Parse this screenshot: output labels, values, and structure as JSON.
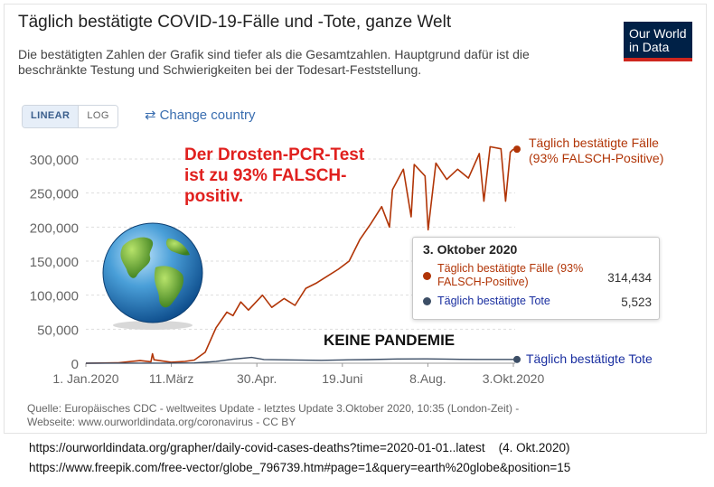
{
  "header": {
    "title": "Täglich bestätigte COVID-19-Fälle und -Tote, ganze Welt",
    "subtitle": "Die bestätigten Zahlen der Grafik sind tiefer als die Gesamtzahlen. Hauptgrund dafür ist die beschränkte Testung und Schwierigkeiten bei der Todesart-Feststellung.",
    "logo_line1": "Our World",
    "logo_line2": "in Data"
  },
  "controls": {
    "linear_label": "LINEAR",
    "log_label": "LOG",
    "scale_selected": "linear",
    "change_country_label": "Change country",
    "change_country_icon": "swap-arrows-icon"
  },
  "annotation": {
    "text": "Der Drosten-PCR-Test ist zu 93% FALSCH-positiv.",
    "color": "#e0201e",
    "banner": "KEINE PANDEMIE",
    "image": "globe-icon"
  },
  "tooltip": {
    "date": "3. Oktober 2020",
    "rows": [
      {
        "label": "Täglich bestätigte Fälle (93% FALSCH-Positive)",
        "value": "314,434",
        "color": "#b13507"
      },
      {
        "label": "Täglich bestätigte Tote",
        "value": "5,523",
        "color": "#3c4e66"
      }
    ]
  },
  "chart_data": {
    "type": "line",
    "title": "Täglich bestätigte COVID-19-Fälle und -Tote, ganze Welt",
    "x_start": "2020-01-01",
    "x_end": "2020-10-03",
    "x_tick_labels": [
      "1. Jan.2020",
      "11.März",
      "30.Apr.",
      "19.Juni",
      "8.Aug.",
      "3.Okt.2020"
    ],
    "y_tick_labels": [
      "0",
      "50,000",
      "100,000",
      "150,000",
      "200,000",
      "250,000",
      "300,000"
    ],
    "ylim": [
      0,
      320000
    ],
    "grid": "horizontal dashed",
    "series": [
      {
        "name": "Täglich bestätigte Fälle (93% FALSCH-Positive)",
        "color": "#b13507",
        "end_value": 314434,
        "points": [
          [
            "2020-01-01",
            0
          ],
          [
            "2020-01-22",
            600
          ],
          [
            "2020-02-05",
            3800
          ],
          [
            "2020-02-12",
            2100
          ],
          [
            "2020-02-13",
            14000
          ],
          [
            "2020-02-14",
            5000
          ],
          [
            "2020-02-25",
            1500
          ],
          [
            "2020-03-05",
            2600
          ],
          [
            "2020-03-11",
            4600
          ],
          [
            "2020-03-18",
            16000
          ],
          [
            "2020-03-25",
            52000
          ],
          [
            "2020-04-01",
            75000
          ],
          [
            "2020-04-05",
            70000
          ],
          [
            "2020-04-10",
            90000
          ],
          [
            "2020-04-15",
            78000
          ],
          [
            "2020-04-24",
            100000
          ],
          [
            "2020-04-30",
            82000
          ],
          [
            "2020-05-08",
            95000
          ],
          [
            "2020-05-15",
            85000
          ],
          [
            "2020-05-22",
            110000
          ],
          [
            "2020-05-29",
            118000
          ],
          [
            "2020-06-05",
            128000
          ],
          [
            "2020-06-12",
            138000
          ],
          [
            "2020-06-19",
            150000
          ],
          [
            "2020-06-26",
            182000
          ],
          [
            "2020-07-03",
            205000
          ],
          [
            "2020-07-10",
            230000
          ],
          [
            "2020-07-15",
            200000
          ],
          [
            "2020-07-17",
            255000
          ],
          [
            "2020-07-24",
            285000
          ],
          [
            "2020-07-29",
            215000
          ],
          [
            "2020-07-31",
            292000
          ],
          [
            "2020-08-07",
            275000
          ],
          [
            "2020-08-09",
            196000
          ],
          [
            "2020-08-14",
            294000
          ],
          [
            "2020-08-21",
            270000
          ],
          [
            "2020-08-28",
            285000
          ],
          [
            "2020-09-04",
            272000
          ],
          [
            "2020-09-11",
            308000
          ],
          [
            "2020-09-14",
            238000
          ],
          [
            "2020-09-18",
            318000
          ],
          [
            "2020-09-25",
            315000
          ],
          [
            "2020-09-28",
            238000
          ],
          [
            "2020-10-01",
            310000
          ],
          [
            "2020-10-03",
            314434
          ]
        ]
      },
      {
        "name": "Täglich bestätigte Tote",
        "color": "#3c4e66",
        "end_value": 5523,
        "points": [
          [
            "2020-01-01",
            0
          ],
          [
            "2020-02-20",
            100
          ],
          [
            "2020-03-11",
            400
          ],
          [
            "2020-03-25",
            2500
          ],
          [
            "2020-04-05",
            6000
          ],
          [
            "2020-04-17",
            8500
          ],
          [
            "2020-04-25",
            5500
          ],
          [
            "2020-05-15",
            4800
          ],
          [
            "2020-06-01",
            4200
          ],
          [
            "2020-06-19",
            5000
          ],
          [
            "2020-07-01",
            5300
          ],
          [
            "2020-07-20",
            6200
          ],
          [
            "2020-08-08",
            6400
          ],
          [
            "2020-08-25",
            5800
          ],
          [
            "2020-09-10",
            5600
          ],
          [
            "2020-10-03",
            5523
          ]
        ]
      }
    ]
  },
  "source": {
    "text": "Quelle: Europäisches CDC - weltweites Update - letztes Update 3.Oktober 2020, 10:35 (London-Zeit) - Webseite: www.ourworldindata.org/coronavirus - CC BY"
  },
  "footer": {
    "url1": "https://ourworldindata.org/grapher/daily-covid-cases-deaths?time=2020-01-01..latest",
    "url1_date": "(4. Okt.2020)",
    "url2": "https://www.freepik.com/free-vector/globe_796739.htm#page=1&query=earth%20globe&position=15"
  }
}
